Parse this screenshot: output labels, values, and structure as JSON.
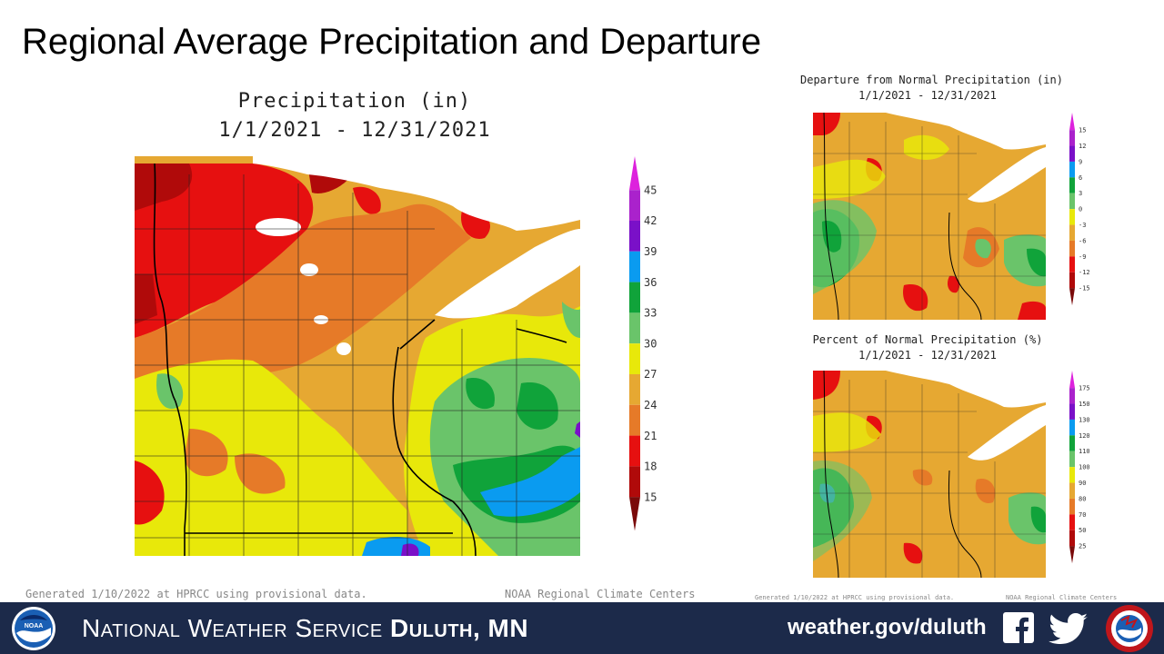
{
  "slide": {
    "title": "Regional Average Precipitation and Departure"
  },
  "main_map": {
    "title_line1": "Precipitation (in)",
    "title_line2": "1/1/2021 - 12/31/2021",
    "legend": {
      "labels": [
        "45",
        "42",
        "39",
        "36",
        "33",
        "30",
        "27",
        "24",
        "21",
        "18",
        "15"
      ],
      "colors": [
        "#dd22dd",
        "#aa22cc",
        "#7a10c8",
        "#0a9bf0",
        "#10a33a",
        "#6ac46a",
        "#e8e80a",
        "#e6a832",
        "#e67a28",
        "#e61010",
        "#b00a0a",
        "#7a0a0a"
      ]
    },
    "footer_left": "Generated 1/10/2022 at HPRCC using provisional data.",
    "footer_right": "NOAA Regional Climate Centers"
  },
  "departure_map": {
    "title_line1": "Departure from Normal Precipitation (in)",
    "title_line2": "1/1/2021 - 12/31/2021",
    "legend": {
      "labels": [
        "15",
        "12",
        "9",
        "6",
        "3",
        "0",
        "-3",
        "-6",
        "-9",
        "-12",
        "-15"
      ],
      "colors": [
        "#dd22dd",
        "#aa22cc",
        "#7a10c8",
        "#0a9bf0",
        "#10a33a",
        "#6ac46a",
        "#e8e80a",
        "#e6a832",
        "#e67a28",
        "#e61010",
        "#b00a0a",
        "#7a0a0a"
      ]
    }
  },
  "percent_map": {
    "title_line1": "Percent of Normal Precipitation (%)",
    "title_line2": "1/1/2021 - 12/31/2021",
    "legend": {
      "labels": [
        "175",
        "150",
        "130",
        "120",
        "110",
        "100",
        "90",
        "80",
        "70",
        "50",
        "25"
      ],
      "colors": [
        "#dd22dd",
        "#aa22cc",
        "#7a10c8",
        "#0a9bf0",
        "#10a33a",
        "#6ac46a",
        "#e8e80a",
        "#e6a832",
        "#e67a28",
        "#e61010",
        "#b00a0a",
        "#7a0a0a"
      ]
    },
    "footer_left": "Generated 1/10/2022 at HPRCC using provisional data.",
    "footer_right": "NOAA Regional Climate Centers"
  },
  "banner": {
    "org_name": "National Weather Service",
    "office": "Duluth, MN",
    "url": "weather.gov/duluth",
    "background_color": "#1c2a4a",
    "icons": [
      "noaa-logo-icon",
      "facebook-icon",
      "twitter-icon",
      "nws-logo-icon"
    ]
  }
}
